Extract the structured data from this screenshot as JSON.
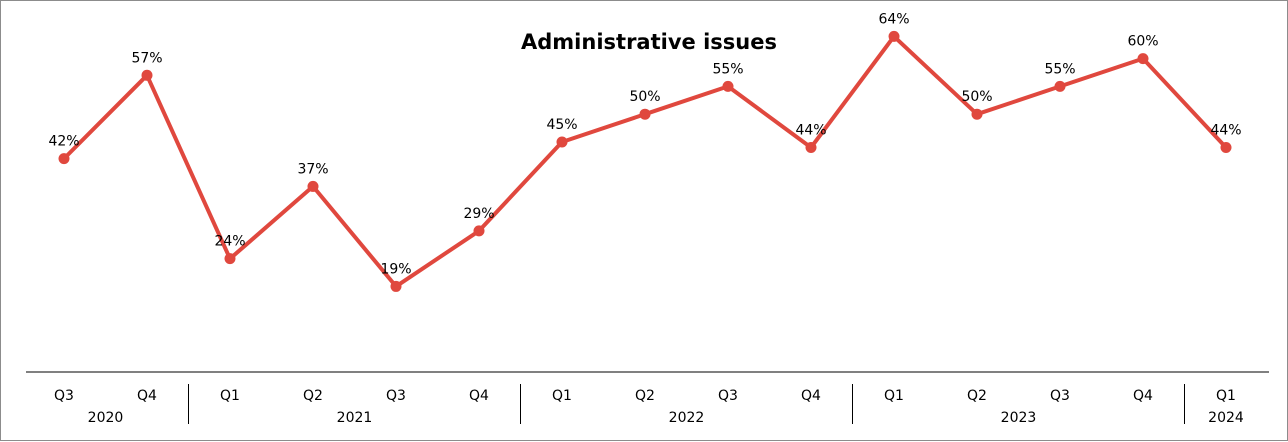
{
  "chart_data": {
    "type": "line",
    "title": "Administrative issues",
    "categories": [
      "Q3",
      "Q4",
      "Q1",
      "Q2",
      "Q3",
      "Q4",
      "Q1",
      "Q2",
      "Q3",
      "Q4",
      "Q1",
      "Q2",
      "Q3",
      "Q4",
      "Q1"
    ],
    "years": [
      {
        "label": "2020",
        "span": [
          0,
          1
        ]
      },
      {
        "label": "2021",
        "span": [
          2,
          5
        ]
      },
      {
        "label": "2022",
        "span": [
          6,
          9
        ]
      },
      {
        "label": "2023",
        "span": [
          10,
          13
        ]
      },
      {
        "label": "2024",
        "span": [
          14,
          14
        ]
      }
    ],
    "values": [
      42,
      57,
      24,
      37,
      19,
      29,
      45,
      50,
      55,
      44,
      64,
      50,
      55,
      60,
      44
    ],
    "data_labels": [
      "42%",
      "57%",
      "24%",
      "37%",
      "19%",
      "29%",
      "45%",
      "50%",
      "55%",
      "44%",
      "64%",
      "50%",
      "55%",
      "60%",
      "44%"
    ],
    "unit": "%",
    "ylim": [
      0,
      100
    ],
    "grid": false,
    "legend": "none",
    "line_color": "#e0483e",
    "axis_color": "#000000"
  }
}
